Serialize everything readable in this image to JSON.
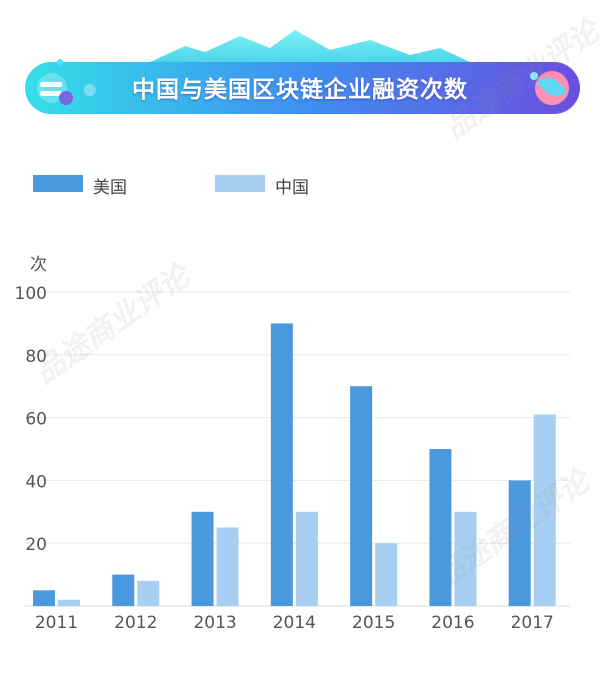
{
  "title": "中国与美国区块链企业融资次数",
  "colors": {
    "us": "#4a98de",
    "cn": "#a6cff2",
    "grid": "#e8e8e8",
    "axis_text": "#555555",
    "banner_start": "#33e0e6",
    "banner_end": "#6a4fe0"
  },
  "chart_data": {
    "type": "bar",
    "title": "中国与美国区块链企业融资次数",
    "ylabel": "次",
    "xlabel": "",
    "categories": [
      "2011",
      "2012",
      "2013",
      "2014",
      "2015",
      "2016",
      "2017"
    ],
    "series": [
      {
        "name": "美国",
        "values": [
          5,
          10,
          30,
          90,
          70,
          50,
          40
        ]
      },
      {
        "name": "中国",
        "values": [
          2,
          8,
          25,
          30,
          20,
          30,
          61
        ]
      }
    ],
    "ylim": [
      0,
      100
    ],
    "yticks": [
      "100",
      "80",
      "60",
      "40",
      "20"
    ],
    "grid": true,
    "legend_position": "top-left"
  }
}
